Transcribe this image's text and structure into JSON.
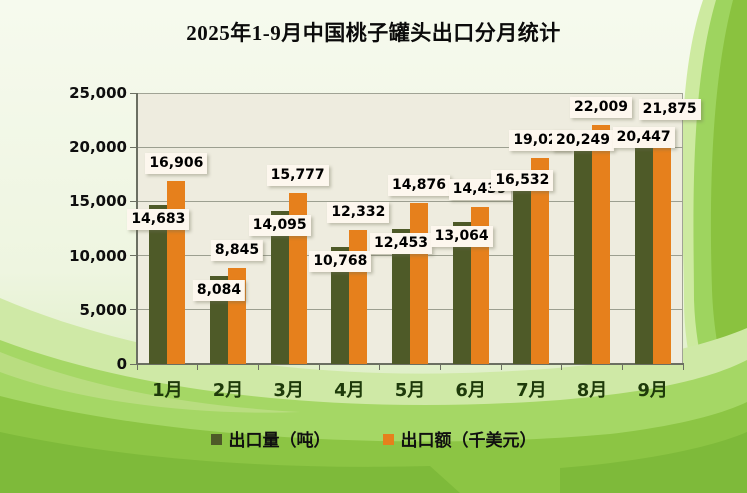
{
  "page": {
    "title": "2025年1-9月中国桃子罐头出口分月统计"
  },
  "chart_data": {
    "type": "bar",
    "title": "2025年1-9月中国桃子罐头出口分月统计",
    "categories": [
      "1月",
      "2月",
      "3月",
      "4月",
      "5月",
      "6月",
      "7月",
      "8月",
      "9月"
    ],
    "series": [
      {
        "name": "出口量（吨）",
        "color": "#4e5a28",
        "values": [
          14683,
          8084,
          14095,
          10768,
          12453,
          13064,
          16532,
          20249,
          20447
        ]
      },
      {
        "name": "出口额（千美元）",
        "color": "#e6801c",
        "values": [
          16906,
          8845,
          15777,
          12332,
          14876,
          14439,
          19025,
          22009,
          21875
        ]
      }
    ],
    "xlabel": "",
    "ylabel": "",
    "ylim": [
      0,
      25000
    ],
    "ytick_interval": 5000,
    "ytick_labels": [
      "0",
      "5,000",
      "10,000",
      "15,000",
      "20,000",
      "25,000"
    ],
    "grid": true,
    "legend_position": "bottom",
    "data_labels": "all-points-with-white-boxes",
    "colors": {
      "plot_background": "#eeecdf",
      "label_box_background": "#fdf7ee",
      "gridline": "#9c9f90",
      "axis": "#6b6f62",
      "x_tick_label": "#1e3a0a",
      "background_green_light": "#cfe9a6",
      "background_green_mid": "#a5d765",
      "background_green_deep": "#8cc544"
    }
  }
}
